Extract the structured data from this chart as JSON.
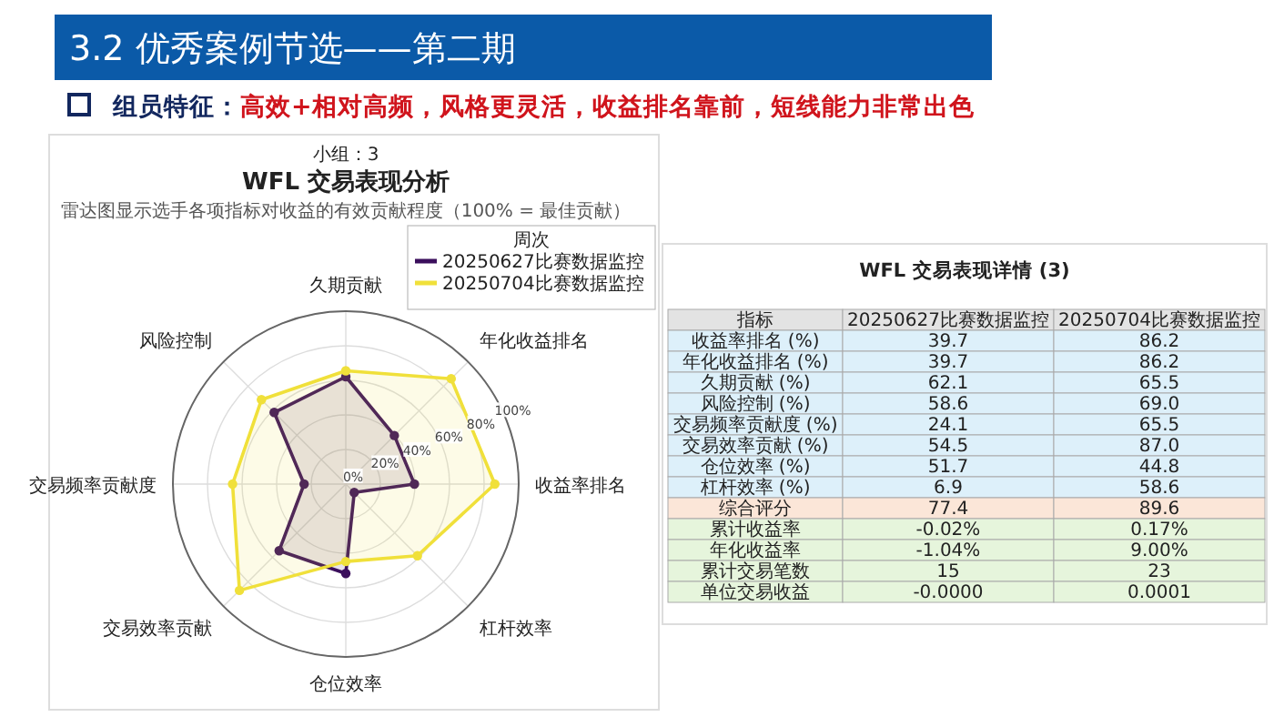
{
  "chart_data": [
    {
      "type": "radar",
      "title": "WFL 交易表现分析",
      "subtitle": "雷达图显示选手各项指标对收益的有效贡献程度（100% = 最佳贡献）",
      "annotations": [
        "3.2 优秀案例节选——第二期",
        "组员特征：",
        "高效+相对高频，风格更灵活，收益排名靠前，短线能力非常出色",
        "小组：3"
      ],
      "categories": [
        "久期贡献",
        "年化收益排名",
        "收益率排名",
        "杠杆效率",
        "仓位效率",
        "交易效率贡献",
        "交易频率贡献度",
        "风险控制"
      ],
      "series": [
        {
          "name": "20250627比赛数据监控",
          "color": "#3b0f5c",
          "values": [
            62.1,
            39.7,
            39.7,
            6.9,
            51.7,
            54.5,
            24.1,
            58.6
          ]
        },
        {
          "name": "20250704比赛数据监控",
          "color": "#f0e03a",
          "values": [
            65.5,
            86.2,
            86.2,
            58.6,
            44.8,
            87.0,
            65.5,
            69.0
          ]
        }
      ],
      "ylim": [
        0,
        100
      ],
      "yticks": [
        {
          "value": 0,
          "label": "0%"
        },
        {
          "value": 20,
          "label": "20%"
        },
        {
          "value": 40,
          "label": "40%"
        },
        {
          "value": 60,
          "label": "60%"
        },
        {
          "value": 80,
          "label": "80%"
        },
        {
          "value": 100,
          "label": "100%"
        }
      ],
      "grid": true,
      "marker": "circle",
      "legend": "top right",
      "legend_title": "周次"
    },
    {
      "type": "other",
      "title": "WFL 交易表现详情 (3)",
      "annotations": [
        "指标",
        "20250627比赛数据监控",
        "20250704比赛数据监控",
        "收益率排名 (%)",
        "39.7",
        "86.2",
        "年化收益排名 (%)",
        "39.7",
        "86.2",
        "久期贡献 (%)",
        "62.1",
        "65.5",
        "风险控制 (%)",
        "58.6",
        "69.0",
        "交易频率贡献度 (%)",
        "24.1",
        "65.5",
        "交易效率贡献 (%)",
        "54.5",
        "87.0",
        "仓位效率 (%)",
        "51.7",
        "44.8",
        "杠杆效率 (%)",
        "6.9",
        "58.6",
        "综合评分",
        "77.4",
        "89.6",
        "累计收益率",
        "-0.02%",
        "0.17%",
        "年化收益率",
        "-1.04%",
        "9.00%",
        "累计交易笔数",
        "15",
        "23",
        "单位交易收益",
        "-0.0000",
        "0.0001"
      ]
    }
  ]
}
